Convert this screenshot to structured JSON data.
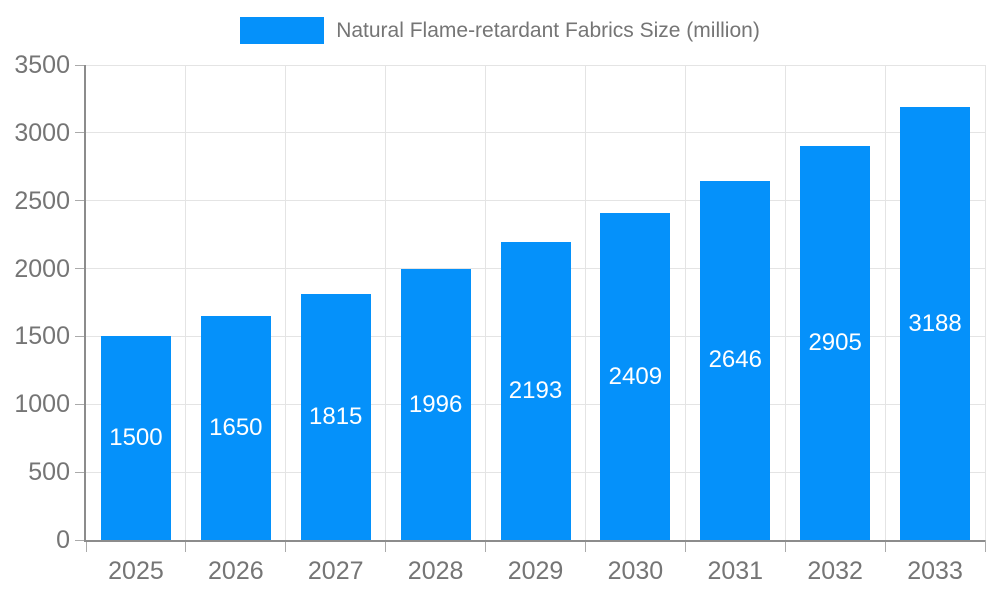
{
  "legend": {
    "label": "Natural Flame-retardant Fabrics Size (million)"
  },
  "colors": {
    "bar": "#0591fa",
    "grid": "#e4e4e4",
    "axis": "#8c8c8c",
    "tick": "#aaaaaa",
    "tick_text": "#757575",
    "value_text": "#ffffff",
    "background": "#ffffff"
  },
  "chart_data": {
    "type": "bar",
    "title": "Natural Flame-retardant Fabrics Size (million)",
    "categories": [
      "2025",
      "2026",
      "2027",
      "2028",
      "2029",
      "2030",
      "2031",
      "2032",
      "2033"
    ],
    "values": [
      1500,
      1650,
      1815,
      1996,
      2193,
      2409,
      2646,
      2905,
      3188
    ],
    "series_name": "Natural Flame-retardant Fabrics Size (million)",
    "xlabel": "",
    "ylabel": "",
    "ylim": [
      0,
      3500
    ],
    "y_ticks": [
      0,
      500,
      1000,
      1500,
      2000,
      2500,
      3000,
      3500
    ],
    "grid": true,
    "legend_position": "top-center",
    "value_label_position": "inside-middle"
  }
}
